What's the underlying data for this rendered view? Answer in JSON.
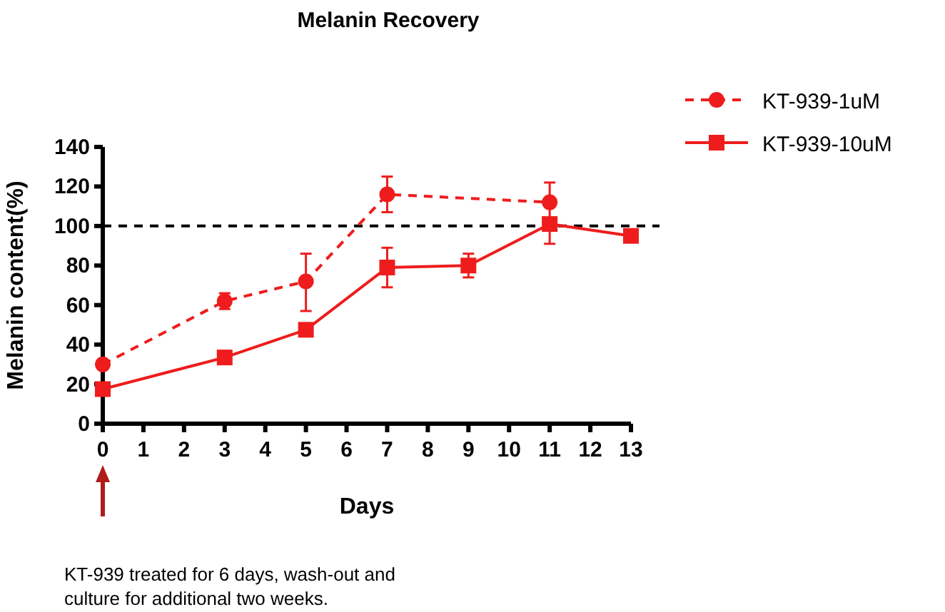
{
  "chart_data": {
    "type": "line",
    "title": "Melanin Recovery",
    "xlabel": "Days",
    "ylabel": "Melanin content(%)",
    "xlim": [
      0,
      13
    ],
    "xticks": [
      0,
      1,
      2,
      3,
      4,
      5,
      6,
      7,
      8,
      9,
      10,
      11,
      12,
      13
    ],
    "ylim": [
      0,
      140
    ],
    "yticks": [
      0,
      20,
      40,
      60,
      80,
      100,
      120,
      140
    ],
    "series": [
      {
        "name": "KT-939-1uM",
        "color": "#ee1c1c",
        "marker": "circle",
        "line_style": "dashed",
        "x": [
          0,
          3,
          5,
          7,
          11
        ],
        "values": [
          30,
          62,
          72,
          116,
          112
        ],
        "errors": [
          null,
          [
            58,
            66
          ],
          [
            57,
            86
          ],
          [
            107,
            125
          ],
          [
            103,
            122
          ]
        ]
      },
      {
        "name": "KT-939-10uM",
        "color": "#ee1c1c",
        "marker": "square",
        "line_style": "solid",
        "x": [
          0,
          3,
          5,
          7,
          9,
          11,
          13
        ],
        "values": [
          17.5,
          33.5,
          47.5,
          79,
          80,
          101,
          95
        ],
        "errors": [
          null,
          null,
          null,
          [
            69,
            89
          ],
          [
            74,
            86
          ],
          [
            91,
            101
          ],
          null
        ]
      }
    ],
    "ref_lines": [
      {
        "axis": "y",
        "value": 100,
        "color": "#000000",
        "line_style": "dashed"
      }
    ],
    "legend": "top right",
    "grid": false,
    "annotations": [
      "KT-939 treated for 6 days,  wash-out and\nculture for additional two weeks."
    ]
  }
}
